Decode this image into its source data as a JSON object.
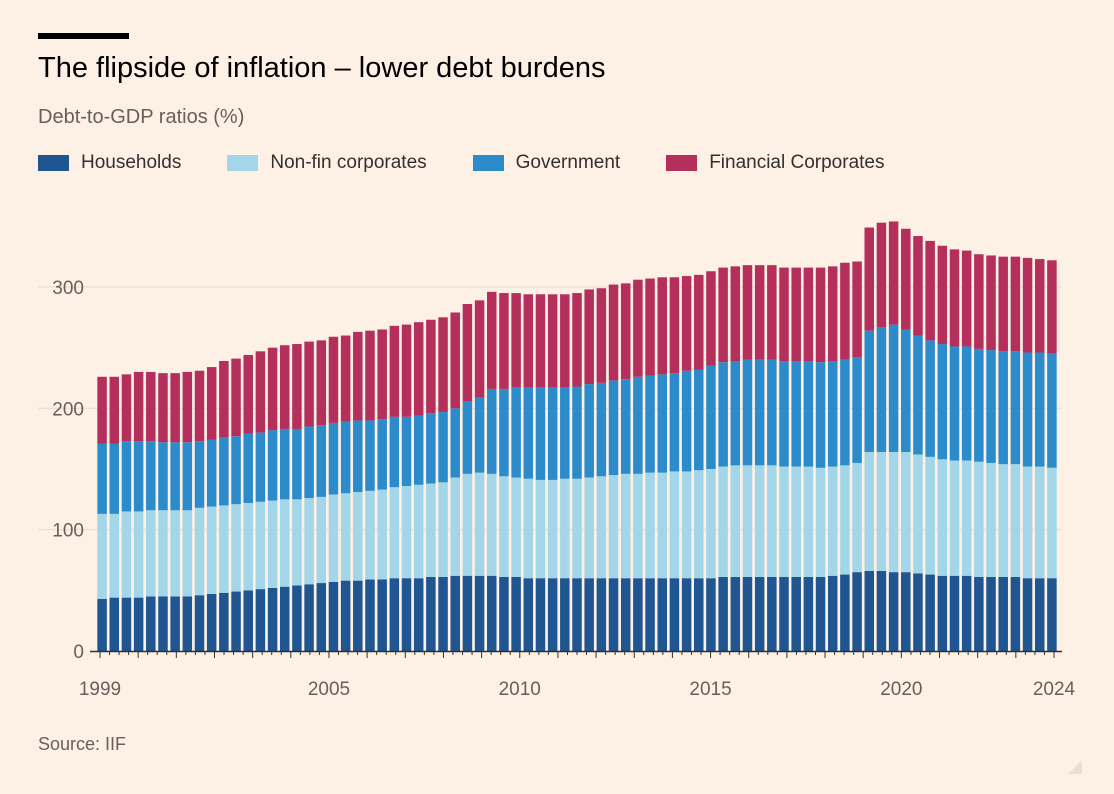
{
  "header": {
    "title": "The flipside of inflation – lower debt burdens",
    "subtitle": "Debt-to-GDP ratios (%)"
  },
  "footer": {
    "source": "Source: IIF"
  },
  "colors": {
    "background": "#fdf1e6",
    "households": "#1f5591",
    "nonfin": "#a3d6e8",
    "government": "#2c8bcb",
    "financial": "#b42f5c",
    "grid": "#eedfd2",
    "axis": "#33302e",
    "tick_text": "#66605c"
  },
  "chart_data": {
    "type": "bar",
    "stacked": true,
    "grid": true,
    "legend_position": "top",
    "ylim": [
      0,
      350
    ],
    "yticks": [
      0,
      100,
      200,
      300
    ],
    "xticks": [
      "1999",
      "2005",
      "2010",
      "2015",
      "2020",
      "2024"
    ],
    "series": [
      {
        "name": "Households",
        "values": [
          43,
          44,
          44,
          44,
          45,
          45,
          45,
          45,
          46,
          47,
          48,
          49,
          50,
          51,
          52,
          53,
          54,
          55,
          56,
          57,
          58,
          58,
          59,
          59,
          60,
          60,
          60,
          61,
          61,
          62,
          62,
          62,
          62,
          61,
          61,
          60,
          60,
          60,
          60,
          60,
          60,
          60,
          60,
          60,
          60,
          60,
          60,
          60,
          60,
          60,
          60,
          61,
          61,
          61,
          61,
          61,
          61,
          61,
          61,
          61,
          62,
          63,
          65,
          66,
          66,
          65,
          65,
          64,
          63,
          62,
          62,
          62,
          61,
          61,
          61,
          61,
          60,
          60,
          60
        ]
      },
      {
        "name": "Non-fin corporates",
        "values": [
          70,
          69,
          71,
          71,
          71,
          71,
          71,
          71,
          72,
          72,
          72,
          72,
          72,
          72,
          72,
          72,
          71,
          71,
          71,
          72,
          72,
          73,
          73,
          74,
          75,
          76,
          77,
          77,
          78,
          81,
          84,
          85,
          84,
          83,
          82,
          82,
          81,
          81,
          82,
          82,
          83,
          84,
          85,
          86,
          86,
          87,
          87,
          88,
          88,
          89,
          90,
          91,
          92,
          92,
          92,
          92,
          91,
          91,
          91,
          90,
          90,
          90,
          90,
          98,
          98,
          99,
          99,
          98,
          97,
          96,
          95,
          95,
          95,
          94,
          93,
          93,
          92,
          92,
          91
        ]
      },
      {
        "name": "Government",
        "values": [
          58,
          58,
          58,
          58,
          57,
          56,
          56,
          56,
          55,
          55,
          56,
          56,
          57,
          57,
          58,
          58,
          58,
          59,
          59,
          59,
          59,
          59,
          58,
          58,
          58,
          57,
          57,
          58,
          58,
          57,
          60,
          62,
          70,
          72,
          74,
          75,
          76,
          76,
          75,
          76,
          77,
          77,
          78,
          78,
          80,
          80,
          81,
          81,
          83,
          83,
          85,
          86,
          86,
          87,
          87,
          87,
          87,
          87,
          87,
          87,
          87,
          87,
          87,
          100,
          103,
          105,
          101,
          98,
          96,
          95,
          94,
          94,
          93,
          93,
          93,
          93,
          94,
          94,
          94
        ]
      },
      {
        "name": "Financial Corporates",
        "values": [
          55,
          55,
          55,
          57,
          57,
          57,
          57,
          58,
          58,
          60,
          63,
          64,
          65,
          67,
          68,
          69,
          70,
          70,
          70,
          71,
          71,
          73,
          74,
          74,
          75,
          76,
          77,
          77,
          78,
          79,
          80,
          80,
          80,
          79,
          78,
          77,
          77,
          77,
          77,
          77,
          78,
          78,
          79,
          79,
          80,
          80,
          80,
          79,
          78,
          78,
          78,
          78,
          78,
          78,
          78,
          78,
          77,
          77,
          77,
          78,
          78,
          80,
          79,
          85,
          86,
          85,
          83,
          82,
          82,
          81,
          80,
          79,
          78,
          78,
          78,
          78,
          78,
          77,
          77
        ]
      }
    ]
  }
}
